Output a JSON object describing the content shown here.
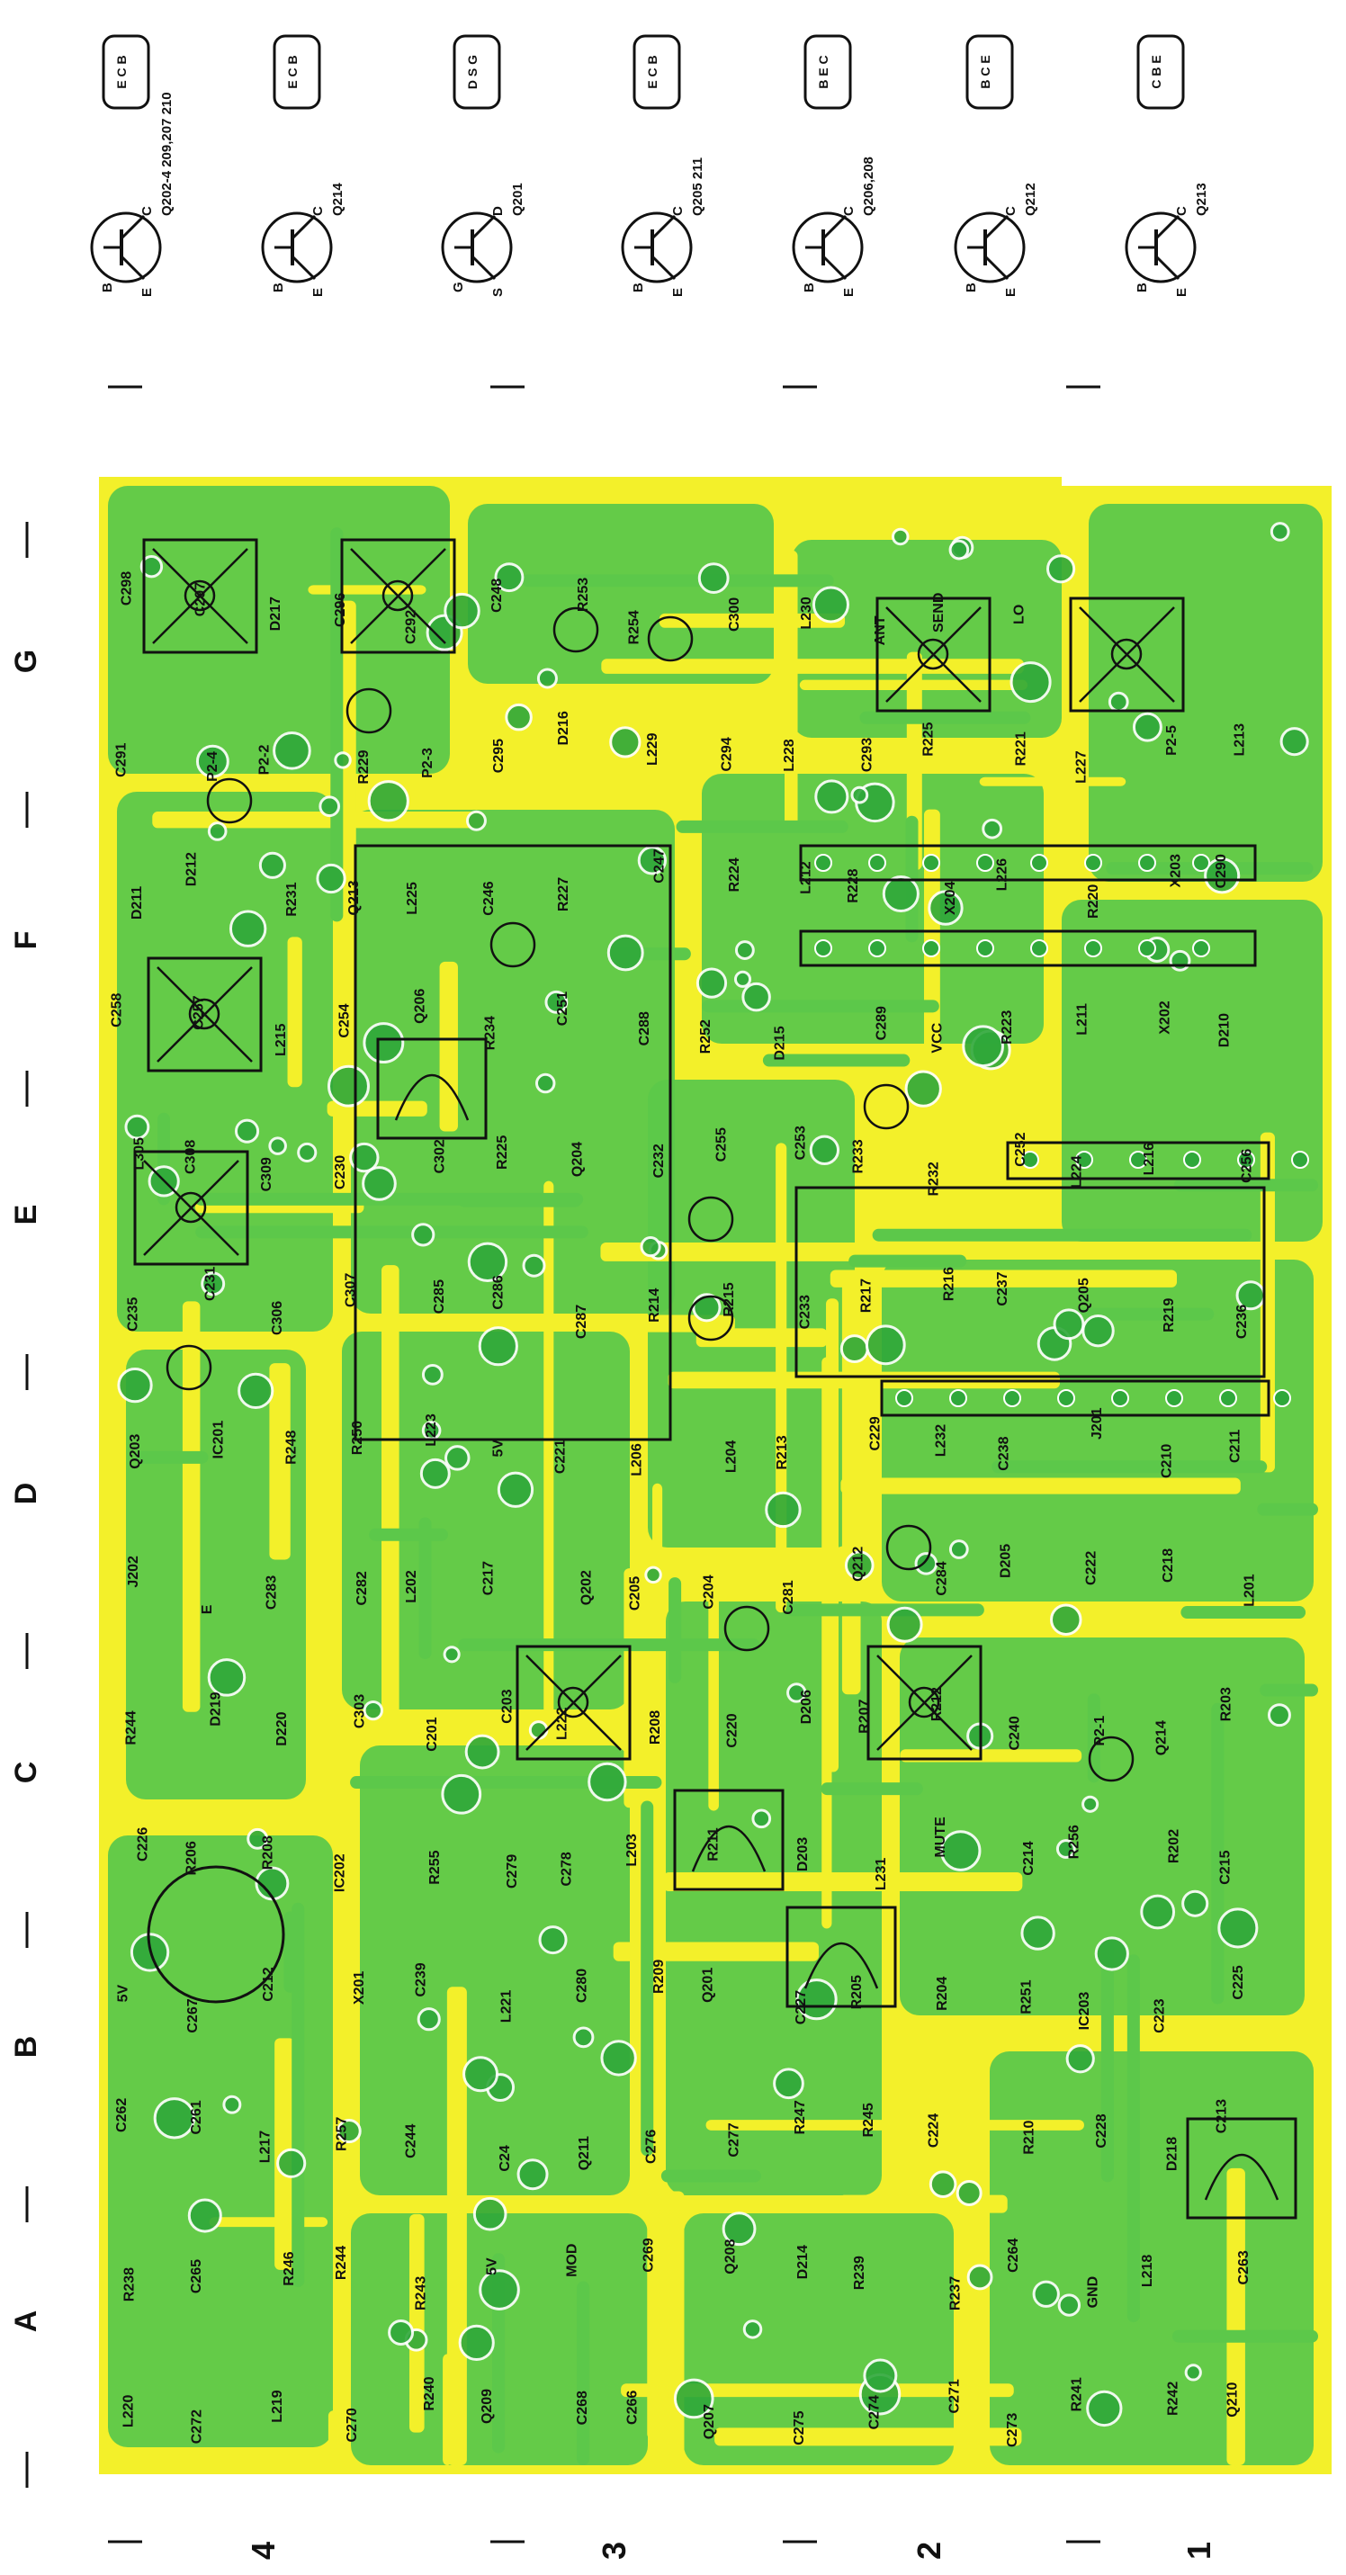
{
  "colors": {
    "board_green": "#5cc84a",
    "trace_yellow": "#f3f02a",
    "pad_green": "#2fa83a",
    "ink": "#111111",
    "background": "#ffffff"
  },
  "grid": {
    "columns": [
      "A",
      "B",
      "C",
      "D",
      "E",
      "F",
      "G"
    ],
    "rows": [
      "4",
      "3",
      "2",
      "1"
    ]
  },
  "transistor_legend": [
    {
      "label": "Q202-4 209,207 210",
      "pins": [
        "C",
        "B",
        "E"
      ],
      "package_pins": "E C B",
      "icon": "npn-transistor-icon"
    },
    {
      "label": "Q214",
      "pins": [
        "C",
        "B",
        "E"
      ],
      "package_pins": "E C B",
      "icon": "pnp-transistor-icon"
    },
    {
      "label": "Q201",
      "pins": [
        "D",
        "G",
        "S"
      ],
      "package_pins": "D S G",
      "icon": "fet-icon"
    },
    {
      "label": "Q205 211",
      "pins": [
        "C",
        "B",
        "E"
      ],
      "package_pins": "E C B",
      "icon": "npn-transistor-icon"
    },
    {
      "label": "Q206,208",
      "pins": [
        "C",
        "B",
        "E"
      ],
      "package_pins": "B E C",
      "icon": "npn-transistor-icon"
    },
    {
      "label": "Q212",
      "pins": [
        "C",
        "B",
        "E"
      ],
      "package_pins": "B C E",
      "icon": "pnp-transistor-icon"
    },
    {
      "label": "Q213",
      "pins": [
        "C",
        "B",
        "E"
      ],
      "package_pins": "C B E",
      "icon": "power-transistor-icon"
    }
  ],
  "board_labels": [
    "L220",
    "C272",
    "L219",
    "C270",
    "R240",
    "Q209",
    "C268",
    "C266",
    "Q207",
    "C275",
    "C274",
    "C271",
    "C273",
    "R241",
    "R242",
    "Q210",
    "R238",
    "C265",
    "R246",
    "R244",
    "R243",
    "5V",
    "MOD",
    "C269",
    "Q208",
    "D214",
    "R239",
    "R237",
    "C264",
    "GND",
    "L218",
    "C263",
    "C262",
    "C261",
    "L217",
    "R257",
    "C244",
    "C24",
    "Q211",
    "C276",
    "C277",
    "R247",
    "R245",
    "C224",
    "R210",
    "C228",
    "D218",
    "C213",
    "5V",
    "C267",
    "C212",
    "X201",
    "C239",
    "L221",
    "C280",
    "R209",
    "Q201",
    "C227",
    "R205",
    "R204",
    "R251",
    "IC203",
    "C223",
    "C225",
    "C226",
    "R206",
    "R208",
    "IC202",
    "R255",
    "C279",
    "C278",
    "L203",
    "R211",
    "D203",
    "L231",
    "MUTE",
    "C214",
    "R256",
    "R202",
    "C215",
    "R244",
    "D219",
    "D220",
    "C303",
    "C201",
    "C203",
    "L222",
    "R208",
    "C220",
    "D206",
    "R207",
    "R212",
    "C240",
    "P2-1",
    "Q214",
    "R203",
    "J202",
    "E",
    "C283",
    "C282",
    "L202",
    "C217",
    "Q202",
    "C205",
    "C204",
    "C281",
    "Q212",
    "C284",
    "D205",
    "C222",
    "C218",
    "L201",
    "Q203",
    "IC201",
    "R248",
    "R250",
    "L223",
    "5V",
    "C221",
    "L206",
    "L204",
    "R213",
    "C229",
    "L232",
    "C238",
    "J201",
    "C210",
    "C211",
    "C235",
    "C231",
    "C306",
    "C307",
    "C285",
    "C286",
    "C287",
    "R214",
    "R215",
    "C233",
    "R217",
    "R216",
    "C237",
    "Q205",
    "R219",
    "C236",
    "L305",
    "C308",
    "C309",
    "C230",
    "C302",
    "R225",
    "Q204",
    "C232",
    "C255",
    "C253",
    "R233",
    "R232",
    "C252",
    "L224",
    "L216",
    "C256",
    "C258",
    "C257",
    "L215",
    "C254",
    "Q206",
    "R234",
    "C251",
    "C288",
    "R252",
    "D215",
    "C289",
    "VCC",
    "R223",
    "L211",
    "X202",
    "D210",
    "D211",
    "D212",
    "R231",
    "Q213",
    "L225",
    "C246",
    "R227",
    "C247",
    "R224",
    "L212",
    "R228",
    "X204",
    "L226",
    "R220",
    "X203",
    "C290",
    "C291",
    "P2-4",
    "P2-2",
    "R229",
    "P2-3",
    "C295",
    "D216",
    "L229",
    "C294",
    "L228",
    "C293",
    "R225",
    "R221",
    "L227",
    "P2-5",
    "L213",
    "C298",
    "C297",
    "D217",
    "C296",
    "C292",
    "C248",
    "R253",
    "R254",
    "C300",
    "L230",
    "ANT",
    "SEND",
    "LO"
  ]
}
